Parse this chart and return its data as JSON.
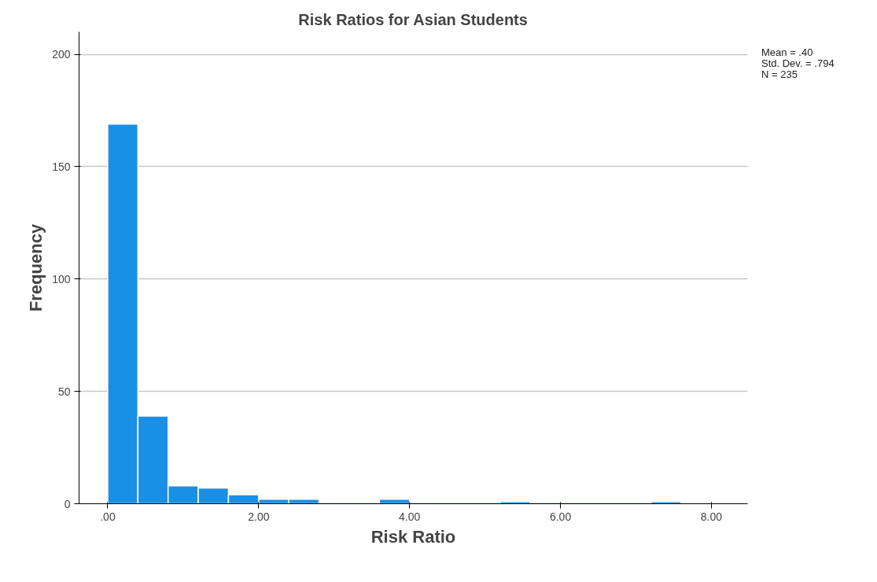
{
  "chart_data": {
    "type": "histogram",
    "title": "Risk Ratios for Asian Students",
    "xlabel": "Risk Ratio",
    "ylabel": "Frequency",
    "bins": [
      0,
      0.4,
      0.8,
      1.2,
      1.6,
      2.0,
      2.4,
      2.8,
      3.2,
      3.6,
      4.0,
      4.4,
      4.8,
      5.2,
      5.6,
      6.0,
      6.4,
      6.8,
      7.2,
      7.6
    ],
    "values": [
      169,
      39,
      8,
      7,
      4,
      2,
      2,
      0,
      0,
      2,
      0,
      0,
      0,
      1,
      0,
      0,
      0,
      0,
      1
    ],
    "color": "#1a8fe6",
    "xlim": [
      -0.38,
      8.48
    ],
    "xticks": [
      {
        "value": 0,
        "label": ".00"
      },
      {
        "value": 2,
        "label": "2.00"
      },
      {
        "value": 4,
        "label": "4.00"
      },
      {
        "value": 6,
        "label": "6.00"
      },
      {
        "value": 8,
        "label": "8.00"
      }
    ],
    "ylim": [
      0,
      210
    ],
    "yticks": [
      0,
      50,
      100,
      150,
      200
    ],
    "grid": "y",
    "annotations": [
      "Mean = .40",
      "Std. Dev. = .794",
      "N = 235"
    ]
  }
}
